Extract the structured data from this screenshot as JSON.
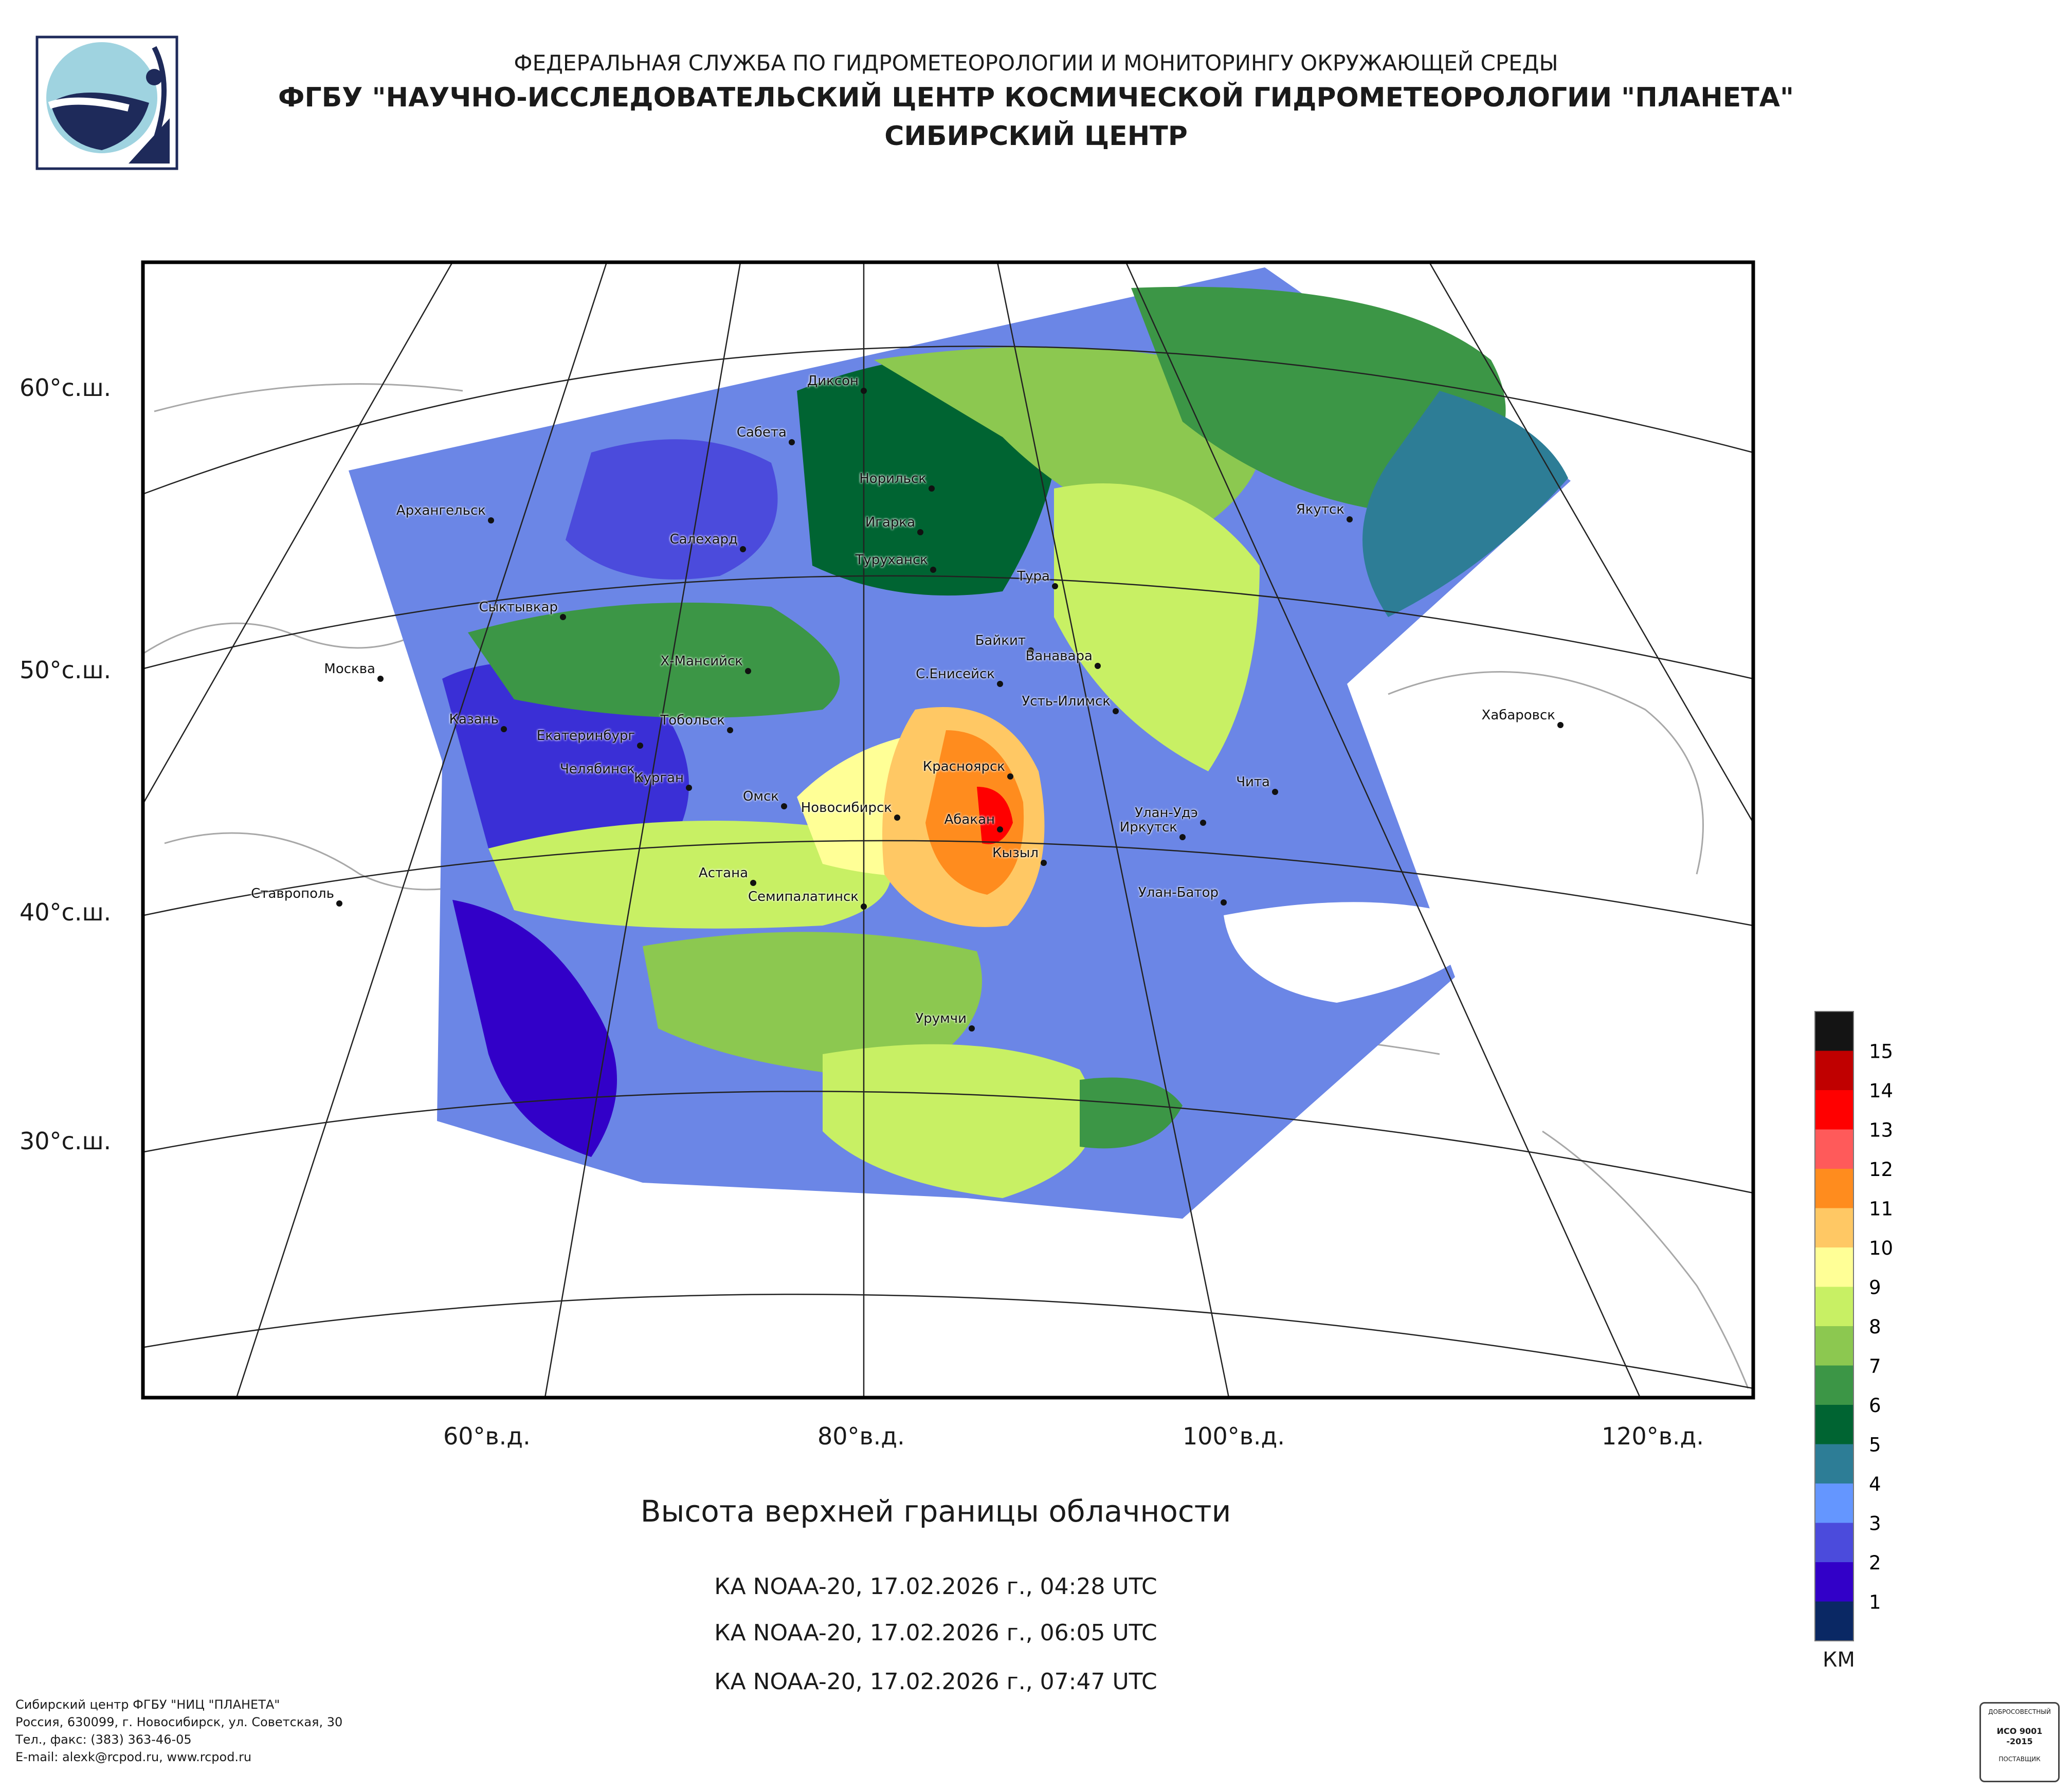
{
  "header": {
    "line1": "ФЕДЕРАЛЬНАЯ СЛУЖБА ПО ГИДРОМЕТЕОРОЛОГИИ И МОНИТОРИНГУ ОКРУЖАЮЩЕЙ СРЕДЫ",
    "line2": "ФГБУ \"НАУЧНО-ИССЛЕДОВАТЕЛЬСКИЙ ЦЕНТР КОСМИЧЕСКОЙ ГИДРОМЕТЕОРОЛОГИИ \"ПЛАНЕТА\"",
    "line3": "СИБИРСКИЙ ЦЕНТР"
  },
  "map": {
    "latitude_labels": [
      "60°с.ш.",
      "50°с.ш.",
      "40°с.ш.",
      "30°с.ш."
    ],
    "longitude_labels": [
      "60°в.д.",
      "80°в.д.",
      "100°в.д.",
      "120°в.д."
    ],
    "cities": [
      "Диксон",
      "Сабета",
      "Норильск",
      "Архангельск",
      "Салехард",
      "Игарка",
      "Туруханск",
      "Тура",
      "Якутск",
      "Сыктывкар",
      "Байкит",
      "Ванавара",
      "Москва",
      "Х-Мансийск",
      "С.Енисейск",
      "Усть-Илимск",
      "Хабаровск",
      "Казань",
      "Екатеринбург",
      "Тобольск",
      "Красноярск",
      "Челябинск",
      "Курган",
      "Омск",
      "Новосибирск",
      "Чита",
      "Абакан",
      "Улан-Удэ",
      "Иркутск",
      "Кызыл",
      "Астана",
      "Ставрополь",
      "Семипалатинск",
      "Улан-Батор",
      "Урумчи"
    ]
  },
  "legend": {
    "unit": "КМ",
    "levels": [
      {
        "label": "15",
        "color": "#141414"
      },
      {
        "label": "14",
        "color": "#c00000"
      },
      {
        "label": "13",
        "color": "#ff0000"
      },
      {
        "label": "12",
        "color": "#ff5a5a"
      },
      {
        "label": "11",
        "color": "#ff8c1e"
      },
      {
        "label": "10",
        "color": "#ffc864"
      },
      {
        "label": "9",
        "color": "#ffff96"
      },
      {
        "label": "8",
        "color": "#c8f064"
      },
      {
        "label": "7",
        "color": "#8cc850"
      },
      {
        "label": "6",
        "color": "#3c9646"
      },
      {
        "label": "5",
        "color": "#006432"
      },
      {
        "label": "4",
        "color": "#2d7d96"
      },
      {
        "label": "3",
        "color": "#6496ff"
      },
      {
        "label": "2",
        "color": "#4b4bdc"
      },
      {
        "label": "1",
        "color": "#3200c8"
      },
      {
        "label": "",
        "color": "#0a2864"
      }
    ]
  },
  "caption": {
    "title": "Высота верхней границы облачности",
    "passes": [
      "КА NOAA-20, 17.02.2026 г., 04:28 UTC",
      "КА NOAA-20, 17.02.2026 г., 06:05 UTC",
      "КА NOAA-20, 17.02.2026 г., 07:47 UTC"
    ]
  },
  "footer": {
    "lines": [
      "Сибирский центр ФГБУ \"НИЦ \"ПЛАНЕТА\"",
      "Россия, 630099, г. Новосибирск, ул. Советская, 30",
      "Тел., факс: (383) 363-46-05",
      "E-mail: alexk@rcpod.ru, www.rcpod.ru"
    ]
  },
  "cert": {
    "top": "ДОБРОСОВЕСТНЫЙ",
    "iso": "ИСО 9001 -2015",
    "bottom": "ПОСТАВЩИК"
  }
}
